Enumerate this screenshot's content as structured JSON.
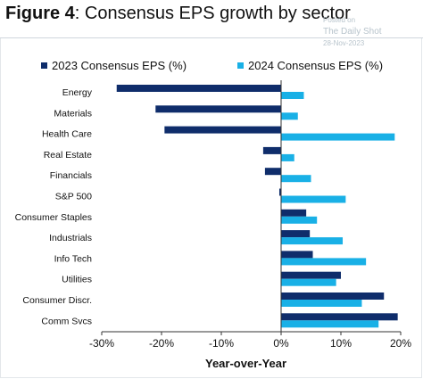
{
  "header": {
    "figure_label": "Figure 4",
    "title_text": ": Consensus EPS growth by sector"
  },
  "watermark": {
    "line1": "Posted on",
    "line2": "The Daily Shot",
    "line3": "28-Nov-2023"
  },
  "colors": {
    "series_2023": "#0f2d6b",
    "series_2024": "#19b0e6"
  },
  "chart_data": {
    "type": "bar",
    "orientation": "horizontal",
    "categories": [
      "Energy",
      "Materials",
      "Health Care",
      "Real Estate",
      "Financials",
      "S&P 500",
      "Consumer Staples",
      "Industrials",
      "Info Tech",
      "Utilities",
      "Consumer Discr.",
      "Comm Svcs"
    ],
    "series": [
      {
        "name": "2023 Consensus EPS (%)",
        "values": [
          -27.5,
          -21,
          -19.5,
          -3,
          -2.7,
          -0.3,
          4.2,
          4.8,
          5.3,
          10,
          17.2,
          19.5
        ]
      },
      {
        "name": "2024 Consensus EPS (%)",
        "values": [
          3.8,
          2.8,
          19,
          2.2,
          5,
          10.8,
          6,
          10.3,
          14.2,
          9.2,
          13.5,
          16.3
        ]
      }
    ],
    "xlabel": "Year-over-Year",
    "ylabel": "",
    "xlim": [
      -30,
      20
    ],
    "xticks": [
      "-30%",
      "-20%",
      "-10%",
      "0%",
      "10%",
      "20%"
    ],
    "grid": false,
    "legend_position": "top"
  }
}
